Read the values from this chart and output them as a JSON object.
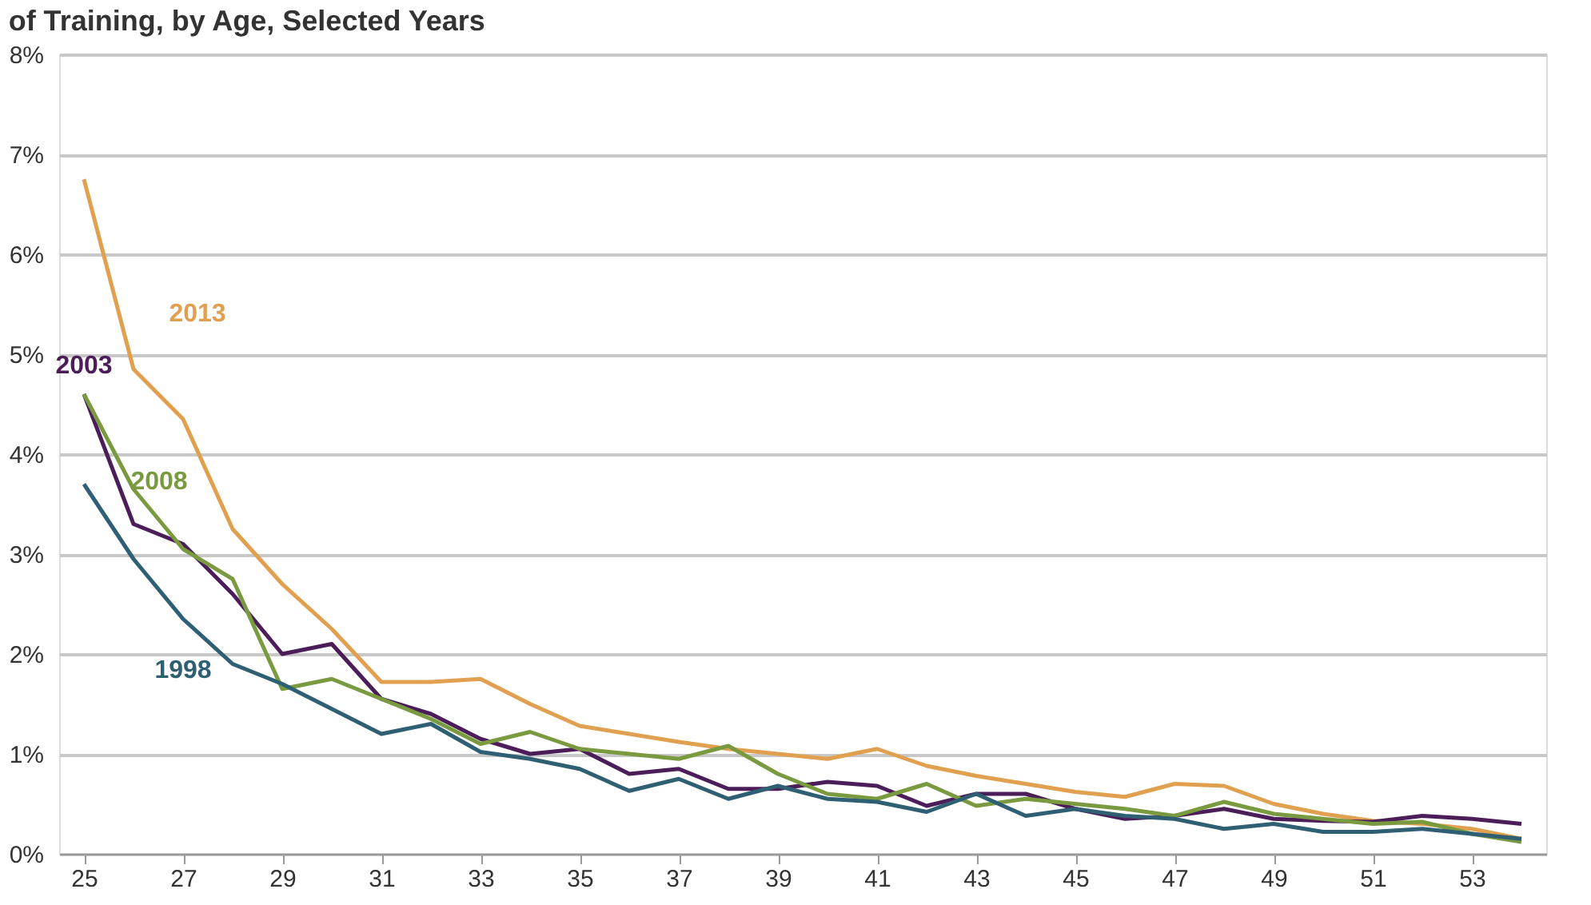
{
  "chart_data": {
    "type": "line",
    "title": "of Training, by Age, Selected Years",
    "x": [
      25,
      26,
      27,
      28,
      29,
      30,
      31,
      32,
      33,
      34,
      35,
      36,
      37,
      38,
      39,
      40,
      41,
      42,
      43,
      44,
      45,
      46,
      47,
      48,
      49,
      50,
      51,
      52,
      53,
      54
    ],
    "series": [
      {
        "name": "2013",
        "color": "#e0a050",
        "values": [
          6.75,
          4.85,
          4.35,
          3.25,
          2.7,
          2.25,
          1.72,
          1.72,
          1.75,
          1.5,
          1.28,
          1.2,
          1.12,
          1.05,
          1.0,
          0.95,
          1.05,
          0.88,
          0.78,
          0.7,
          0.62,
          0.57,
          0.7,
          0.68,
          0.5,
          0.4,
          0.33,
          0.3,
          0.25,
          0.15
        ]
      },
      {
        "name": "2003",
        "color": "#4b1e5a",
        "values": [
          4.6,
          3.3,
          3.1,
          2.6,
          2.0,
          2.1,
          1.55,
          1.4,
          1.15,
          1.0,
          1.05,
          0.8,
          0.85,
          0.65,
          0.65,
          0.72,
          0.68,
          0.48,
          0.6,
          0.6,
          0.45,
          0.35,
          0.38,
          0.45,
          0.35,
          0.33,
          0.32,
          0.38,
          0.35,
          0.3
        ]
      },
      {
        "name": "2008",
        "color": "#7a9a40",
        "values": [
          4.6,
          3.65,
          3.05,
          2.75,
          1.65,
          1.75,
          1.55,
          1.35,
          1.1,
          1.22,
          1.05,
          1.0,
          0.95,
          1.08,
          0.8,
          0.6,
          0.55,
          0.7,
          0.48,
          0.55,
          0.5,
          0.45,
          0.38,
          0.52,
          0.4,
          0.35,
          0.3,
          0.32,
          0.2,
          0.12
        ]
      },
      {
        "name": "1998",
        "color": "#2f5f73",
        "values": [
          3.7,
          2.95,
          2.35,
          1.9,
          1.7,
          1.45,
          1.2,
          1.3,
          1.02,
          0.95,
          0.85,
          0.63,
          0.75,
          0.55,
          0.68,
          0.55,
          0.52,
          0.42,
          0.6,
          0.38,
          0.45,
          0.38,
          0.35,
          0.25,
          0.3,
          0.22,
          0.22,
          0.25,
          0.2,
          0.15
        ]
      }
    ],
    "xlim": [
      24.5,
      54.5
    ],
    "xticks": [
      25,
      27,
      29,
      31,
      33,
      35,
      37,
      39,
      41,
      43,
      45,
      47,
      49,
      51,
      53
    ],
    "ylim": [
      0,
      8
    ],
    "yticks": [
      {
        "value": 0,
        "label": "0%"
      },
      {
        "value": 1,
        "label": "1%"
      },
      {
        "value": 2,
        "label": "2%"
      },
      {
        "value": 3,
        "label": "3%"
      },
      {
        "value": 4,
        "label": "4%"
      },
      {
        "value": 5,
        "label": "5%"
      },
      {
        "value": 6,
        "label": "6%"
      },
      {
        "value": 7,
        "label": "7%"
      },
      {
        "value": 8,
        "label": "8%"
      }
    ],
    "grid": "y",
    "legend": false,
    "marker": "none",
    "line_style": "solid"
  }
}
